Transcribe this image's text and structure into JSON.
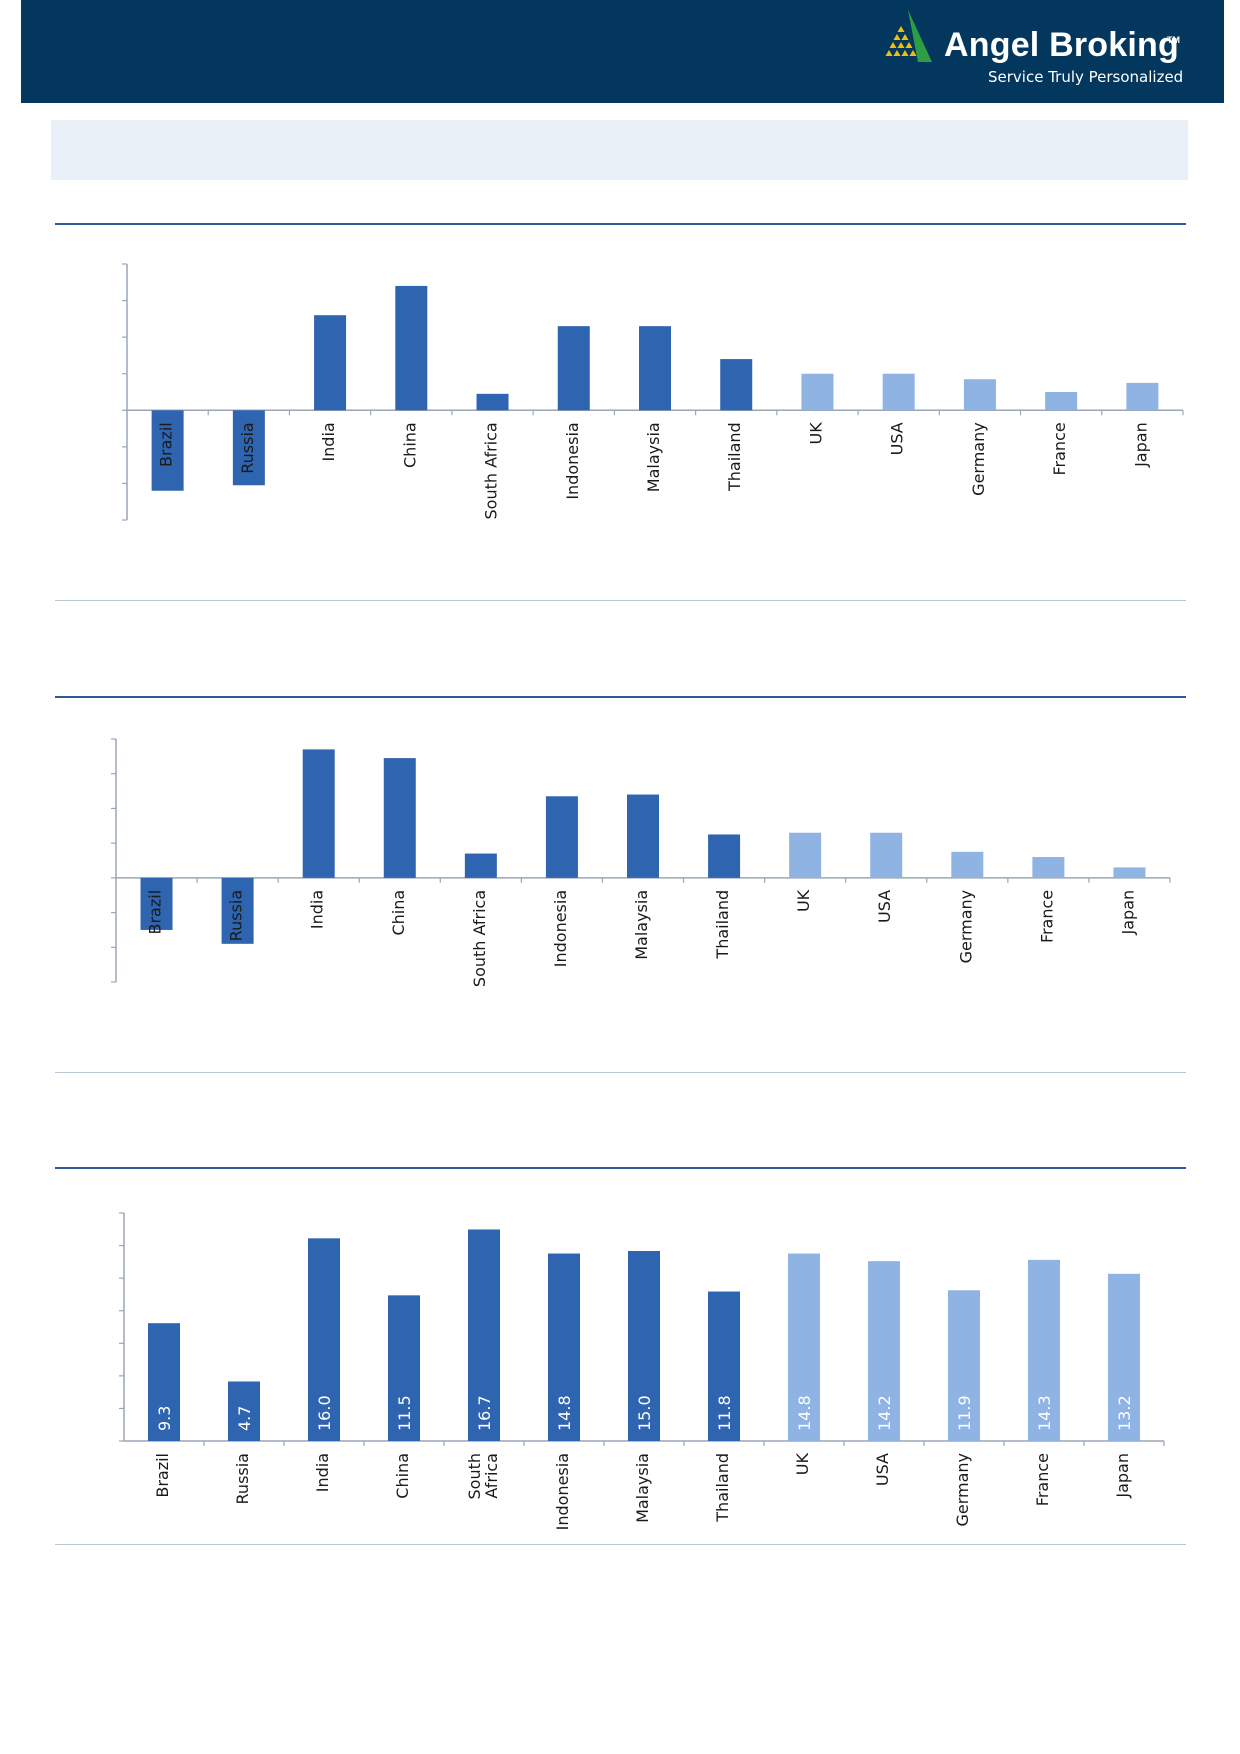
{
  "brand": {
    "name": "Angel Broking",
    "trademark": "TM",
    "tagline": "Service Truly Personalized",
    "colors": {
      "header_bg": "#03375e",
      "logo_green": "#2e9e45",
      "logo_yellow": "#f2c000"
    }
  },
  "chart_data": [
    {
      "type": "bar",
      "title": "",
      "xlabel": "",
      "ylabel": "",
      "categories": [
        "Brazil",
        "Russia",
        "India",
        "China",
        "South Africa",
        "Indonesia",
        "Malaysia",
        "Thailand",
        "UK",
        "USA",
        "Germany",
        "France",
        "Japan"
      ],
      "values": [
        -4.4,
        -4.1,
        5.2,
        6.8,
        0.9,
        4.6,
        4.6,
        2.8,
        2.0,
        2.0,
        1.7,
        1.0,
        1.5
      ],
      "ylim": [
        -6,
        8
      ],
      "grid": false,
      "colors": [
        "#2e64b0",
        "#2e64b0",
        "#2e64b0",
        "#2e64b0",
        "#2e64b0",
        "#2e64b0",
        "#2e64b0",
        "#2e64b0",
        "#8fb3e3",
        "#8fb3e3",
        "#8fb3e3",
        "#8fb3e3",
        "#8fb3e3"
      ]
    },
    {
      "type": "bar",
      "title": "",
      "xlabel": "",
      "ylabel": "",
      "categories": [
        "Brazil",
        "Russia",
        "India",
        "China",
        "South Africa",
        "Indonesia",
        "Malaysia",
        "Thailand",
        "UK",
        "USA",
        "Germany",
        "France",
        "Japan"
      ],
      "values": [
        -3.0,
        -3.8,
        7.4,
        6.9,
        1.4,
        4.7,
        4.8,
        2.5,
        2.6,
        2.6,
        1.5,
        1.2,
        0.6
      ],
      "ylim": [
        -6,
        8
      ],
      "grid": false,
      "colors": [
        "#2e64b0",
        "#2e64b0",
        "#2e64b0",
        "#2e64b0",
        "#2e64b0",
        "#2e64b0",
        "#2e64b0",
        "#2e64b0",
        "#8fb3e3",
        "#8fb3e3",
        "#8fb3e3",
        "#8fb3e3",
        "#8fb3e3"
      ]
    },
    {
      "type": "bar",
      "title": "",
      "xlabel": "",
      "ylabel": "",
      "categories": [
        "Brazil",
        "Russia",
        "India",
        "China",
        "South\nAfrica",
        "Indonesia",
        "Malaysia",
        "Thailand",
        "UK",
        "USA",
        "Germany",
        "France",
        "Japan"
      ],
      "values": [
        9.3,
        4.7,
        16.0,
        11.5,
        16.7,
        14.8,
        15.0,
        11.8,
        14.8,
        14.2,
        11.9,
        14.3,
        13.2
      ],
      "value_labels": [
        "9.3",
        "4.7",
        "16.0",
        "11.5",
        "16.7",
        "14.8",
        "15.0",
        "11.8",
        "14.8",
        "14.2",
        "11.9",
        "14.3",
        "13.2"
      ],
      "ylim": [
        0,
        18
      ],
      "grid": false,
      "colors": [
        "#2e64b0",
        "#2e64b0",
        "#2e64b0",
        "#2e64b0",
        "#2e64b0",
        "#2e64b0",
        "#2e64b0",
        "#2e64b0",
        "#8fb3e3",
        "#8fb3e3",
        "#8fb3e3",
        "#8fb3e3",
        "#8fb3e3"
      ]
    }
  ]
}
